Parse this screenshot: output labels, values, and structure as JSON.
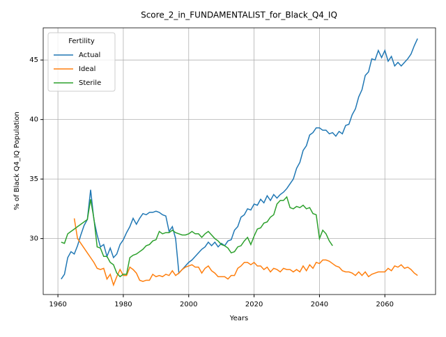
{
  "chart_data": {
    "type": "line",
    "title": "Score_2_in_FUNDAMENTALIST_for_Black_Q4_IQ",
    "xlabel": "Years",
    "ylabel": "% of Black Q4_IQ Population",
    "legend_title": "Fertility",
    "legend": "upper left",
    "grid": true,
    "xlim": [
      1955.5,
      2075.5
    ],
    "ylim": [
      25.3,
      47.7
    ],
    "xticks": [
      1960,
      1980,
      2000,
      2020,
      2040,
      2060
    ],
    "yticks": [
      30,
      35,
      40,
      45
    ],
    "series": [
      {
        "name": "Actual",
        "color": "#1f77b4",
        "x": [
          1961,
          1962,
          1963,
          1964,
          1965,
          1966,
          1967,
          1968,
          1969,
          1970,
          1971,
          1972,
          1973,
          1974,
          1975,
          1976,
          1977,
          1978,
          1979,
          1980,
          1981,
          1982,
          1983,
          1984,
          1985,
          1986,
          1987,
          1988,
          1989,
          1990,
          1991,
          1992,
          1993,
          1994,
          1995,
          1996,
          1997,
          1998,
          1999,
          2000,
          2001,
          2002,
          2003,
          2004,
          2005,
          2006,
          2007,
          2008,
          2009,
          2010,
          2011,
          2012,
          2013,
          2014,
          2015,
          2016,
          2017,
          2018,
          2019,
          2020,
          2021,
          2022,
          2023,
          2024,
          2025,
          2026,
          2027,
          2028,
          2029,
          2030,
          2031,
          2032,
          2033,
          2034,
          2035,
          2036,
          2037,
          2038,
          2039,
          2040,
          2041,
          2042,
          2043,
          2044,
          2045,
          2046,
          2047,
          2048,
          2049,
          2050,
          2051,
          2052,
          2053,
          2054,
          2055,
          2056,
          2057,
          2058,
          2059,
          2060,
          2061,
          2062,
          2063,
          2064,
          2065,
          2066,
          2067,
          2068,
          2069,
          2070
        ],
        "values": [
          26.6,
          27.0,
          28.4,
          28.9,
          28.7,
          29.4,
          30.3,
          31.1,
          31.6,
          34.1,
          31.6,
          30.3,
          29.3,
          29.5,
          28.5,
          29.2,
          28.4,
          28.7,
          29.5,
          29.9,
          30.5,
          31.0,
          31.7,
          31.2,
          31.7,
          32.1,
          32.0,
          32.2,
          32.2,
          32.3,
          32.2,
          32.0,
          31.9,
          30.6,
          31.0,
          30.0,
          27.1,
          27.4,
          27.7,
          28.0,
          28.2,
          28.5,
          28.8,
          29.1,
          29.3,
          29.7,
          29.4,
          29.7,
          29.3,
          29.6,
          29.4,
          29.8,
          29.9,
          30.7,
          31.0,
          31.8,
          32.0,
          32.5,
          32.4,
          32.9,
          32.8,
          33.3,
          33.0,
          33.6,
          33.2,
          33.7,
          33.4,
          33.7,
          33.9,
          34.2,
          34.6,
          35.0,
          35.9,
          36.4,
          37.4,
          37.8,
          38.7,
          38.9,
          39.3,
          39.3,
          39.1,
          39.1,
          38.8,
          38.9,
          38.6,
          39.0,
          38.8,
          39.5,
          39.6,
          40.4,
          40.9,
          41.9,
          42.5,
          43.7,
          44.0,
          45.1,
          45.0,
          45.8,
          45.2,
          45.8,
          44.9,
          45.3,
          44.5,
          44.8,
          44.5,
          44.8,
          45.1,
          45.5,
          46.2,
          46.8
        ]
      },
      {
        "name": "Ideal",
        "color": "#ff7f0e",
        "x": [
          1965,
          1966,
          1967,
          1968,
          1969,
          1970,
          1971,
          1972,
          1973,
          1974,
          1975,
          1976,
          1977,
          1978,
          1979,
          1980,
          1981,
          1982,
          1983,
          1984,
          1985,
          1986,
          1987,
          1988,
          1989,
          1990,
          1991,
          1992,
          1993,
          1994,
          1995,
          1996,
          1997,
          1998,
          1999,
          2000,
          2001,
          2002,
          2003,
          2004,
          2005,
          2006,
          2007,
          2008,
          2009,
          2010,
          2011,
          2012,
          2013,
          2014,
          2015,
          2016,
          2017,
          2018,
          2019,
          2020,
          2021,
          2022,
          2023,
          2024,
          2025,
          2026,
          2027,
          2028,
          2029,
          2030,
          2031,
          2032,
          2033,
          2034,
          2035,
          2036,
          2037,
          2038,
          2039,
          2040,
          2041,
          2042,
          2043,
          2044,
          2045,
          2046,
          2047,
          2048,
          2049,
          2050,
          2051,
          2052,
          2053,
          2054,
          2055,
          2056,
          2057,
          2058,
          2059,
          2060,
          2061,
          2062,
          2063,
          2064,
          2065,
          2066,
          2067,
          2068,
          2069,
          2070
        ],
        "values": [
          31.7,
          30.0,
          29.6,
          29.2,
          28.8,
          28.4,
          28.0,
          27.5,
          27.4,
          27.5,
          26.6,
          27.0,
          26.1,
          26.8,
          27.4,
          26.9,
          26.9,
          27.6,
          27.4,
          27.1,
          26.5,
          26.4,
          26.5,
          26.5,
          27.0,
          26.8,
          26.9,
          26.8,
          27.0,
          26.9,
          27.3,
          26.9,
          27.1,
          27.4,
          27.6,
          27.7,
          27.8,
          27.6,
          27.6,
          27.1,
          27.5,
          27.7,
          27.3,
          27.1,
          26.8,
          26.8,
          26.8,
          26.6,
          26.9,
          26.9,
          27.5,
          27.7,
          28.0,
          28.0,
          27.8,
          28.0,
          27.7,
          27.7,
          27.4,
          27.6,
          27.2,
          27.5,
          27.4,
          27.2,
          27.5,
          27.4,
          27.4,
          27.2,
          27.4,
          27.2,
          27.7,
          27.3,
          27.8,
          27.5,
          28.0,
          27.9,
          28.2,
          28.2,
          28.1,
          27.9,
          27.7,
          27.6,
          27.3,
          27.2,
          27.2,
          27.1,
          26.9,
          27.2,
          26.9,
          27.2,
          26.8,
          27.0,
          27.1,
          27.2,
          27.2,
          27.2,
          27.5,
          27.3,
          27.7,
          27.6,
          27.8,
          27.5,
          27.6,
          27.4,
          27.1,
          26.9
        ]
      },
      {
        "name": "Sterile",
        "color": "#2ca02c",
        "x": [
          1961,
          1962,
          1963,
          1964,
          1965,
          1966,
          1967,
          1968,
          1969,
          1970,
          1971,
          1972,
          1973,
          1974,
          1975,
          1976,
          1977,
          1978,
          1979,
          1980,
          1981,
          1982,
          1983,
          1984,
          1985,
          1986,
          1987,
          1988,
          1989,
          1990,
          1991,
          1992,
          1993,
          1994,
          1995,
          1996,
          1997,
          1998,
          1999,
          2000,
          2001,
          2002,
          2003,
          2004,
          2005,
          2006,
          2007,
          2008,
          2009,
          2010,
          2011,
          2012,
          2013,
          2014,
          2015,
          2016,
          2017,
          2018,
          2019,
          2020,
          2021,
          2022,
          2023,
          2024,
          2025,
          2026,
          2027,
          2028,
          2029,
          2030,
          2031,
          2032,
          2033,
          2034,
          2035,
          2036,
          2037,
          2038,
          2039,
          2040,
          2041,
          2042,
          2043,
          2044
        ],
        "values": [
          29.7,
          29.6,
          30.4,
          30.6,
          30.8,
          31.0,
          31.2,
          31.4,
          31.6,
          33.3,
          31.7,
          29.3,
          29.2,
          28.5,
          28.5,
          28.0,
          27.8,
          27.1,
          26.8,
          27.0,
          27.0,
          28.4,
          28.6,
          28.7,
          28.9,
          29.1,
          29.4,
          29.5,
          29.8,
          29.9,
          30.6,
          30.4,
          30.5,
          30.5,
          30.7,
          30.5,
          30.4,
          30.3,
          30.3,
          30.4,
          30.6,
          30.4,
          30.4,
          30.1,
          30.4,
          30.6,
          30.3,
          30.0,
          29.8,
          29.5,
          29.4,
          29.2,
          28.8,
          28.9,
          29.3,
          29.4,
          29.8,
          30.1,
          29.5,
          30.2,
          30.8,
          30.9,
          31.3,
          31.4,
          31.8,
          32.0,
          32.9,
          33.2,
          33.2,
          33.5,
          32.6,
          32.5,
          32.7,
          32.6,
          32.8,
          32.5,
          32.6,
          32.1,
          32.0,
          30.0,
          30.7,
          30.4,
          29.8,
          29.4
        ]
      }
    ]
  }
}
